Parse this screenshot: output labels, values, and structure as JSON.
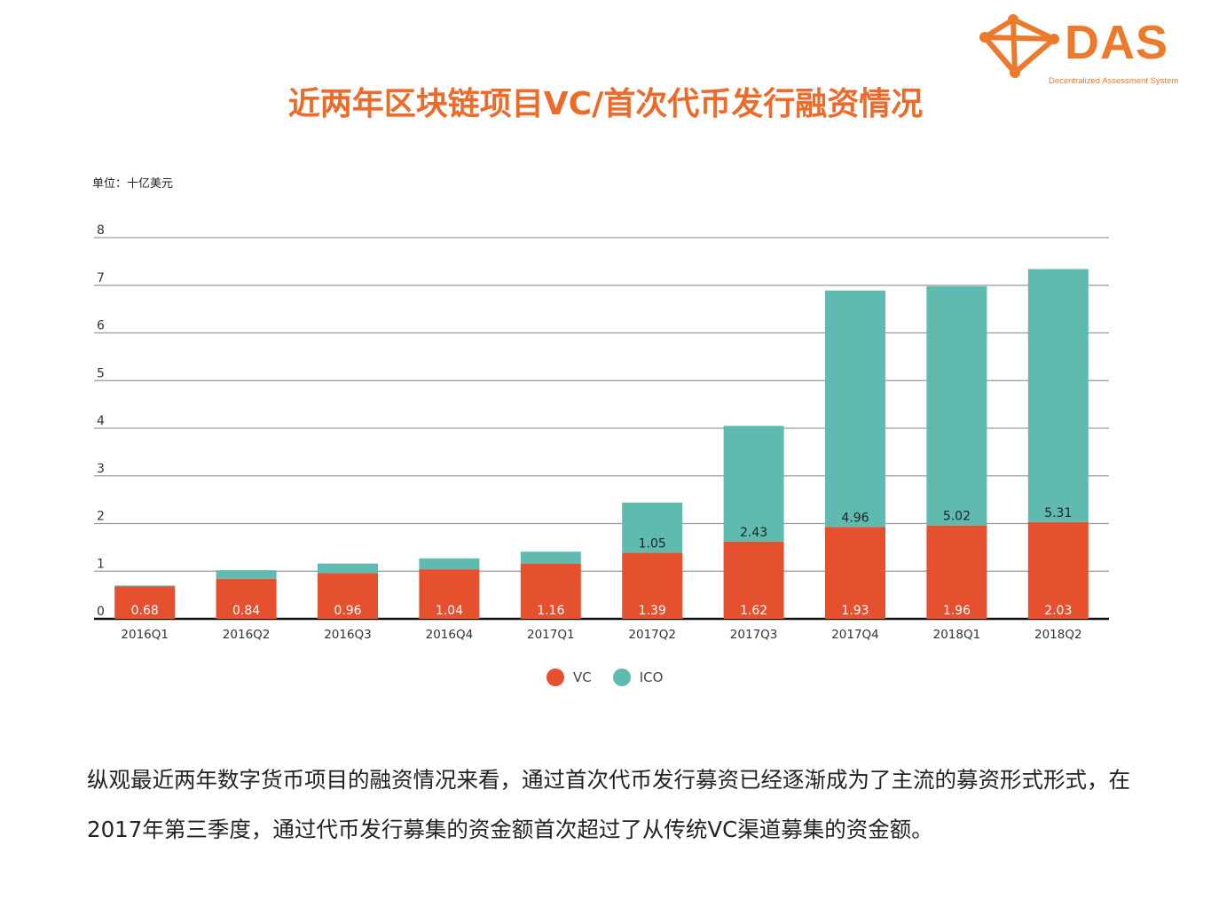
{
  "logo": {
    "text": "DAS",
    "tagline": "Decentralized Assessment System",
    "color": "#ec7a2c"
  },
  "title": "近两年区块链项目VC/首次代币发行融资情况",
  "unit_label": "单位：十亿美元",
  "chart_data": {
    "type": "bar",
    "stacked": true,
    "categories": [
      "2016Q1",
      "2016Q2",
      "2016Q3",
      "2016Q4",
      "2017Q1",
      "2017Q2",
      "2017Q3",
      "2017Q4",
      "2018Q1",
      "2018Q2"
    ],
    "series": [
      {
        "name": "VC",
        "color": "#e5502f",
        "values": [
          0.68,
          0.84,
          0.96,
          1.04,
          1.16,
          1.39,
          1.62,
          1.93,
          1.96,
          2.03
        ],
        "labels": [
          "0.68",
          "0.84",
          "0.96",
          "1.04",
          "1.16",
          "1.39",
          "1.62",
          "1.93",
          "1.96",
          "2.03"
        ]
      },
      {
        "name": "ICO",
        "color": "#5fbbb0",
        "values": [
          0.02,
          0.18,
          0.2,
          0.23,
          0.25,
          1.05,
          2.43,
          4.96,
          5.02,
          5.31
        ],
        "labels": [
          "",
          "",
          "",
          "",
          "",
          "1.05",
          "2.43",
          "4.96",
          "5.02",
          "5.31"
        ]
      }
    ],
    "yticks": [
      "0",
      "1",
      "2",
      "3",
      "4",
      "5",
      "6",
      "7",
      "8"
    ],
    "ylim": [
      0,
      8
    ],
    "grid": true,
    "legend_position": "bottom"
  },
  "body_text": "纵观最近两年数字货币项目的融资情况来看，通过首次代币发行募资已经逐渐成为了主流的募资形式形式，在2017年第三季度，通过代币发行募集的资金额首次超过了从传统VC渠道募集的资金额。"
}
